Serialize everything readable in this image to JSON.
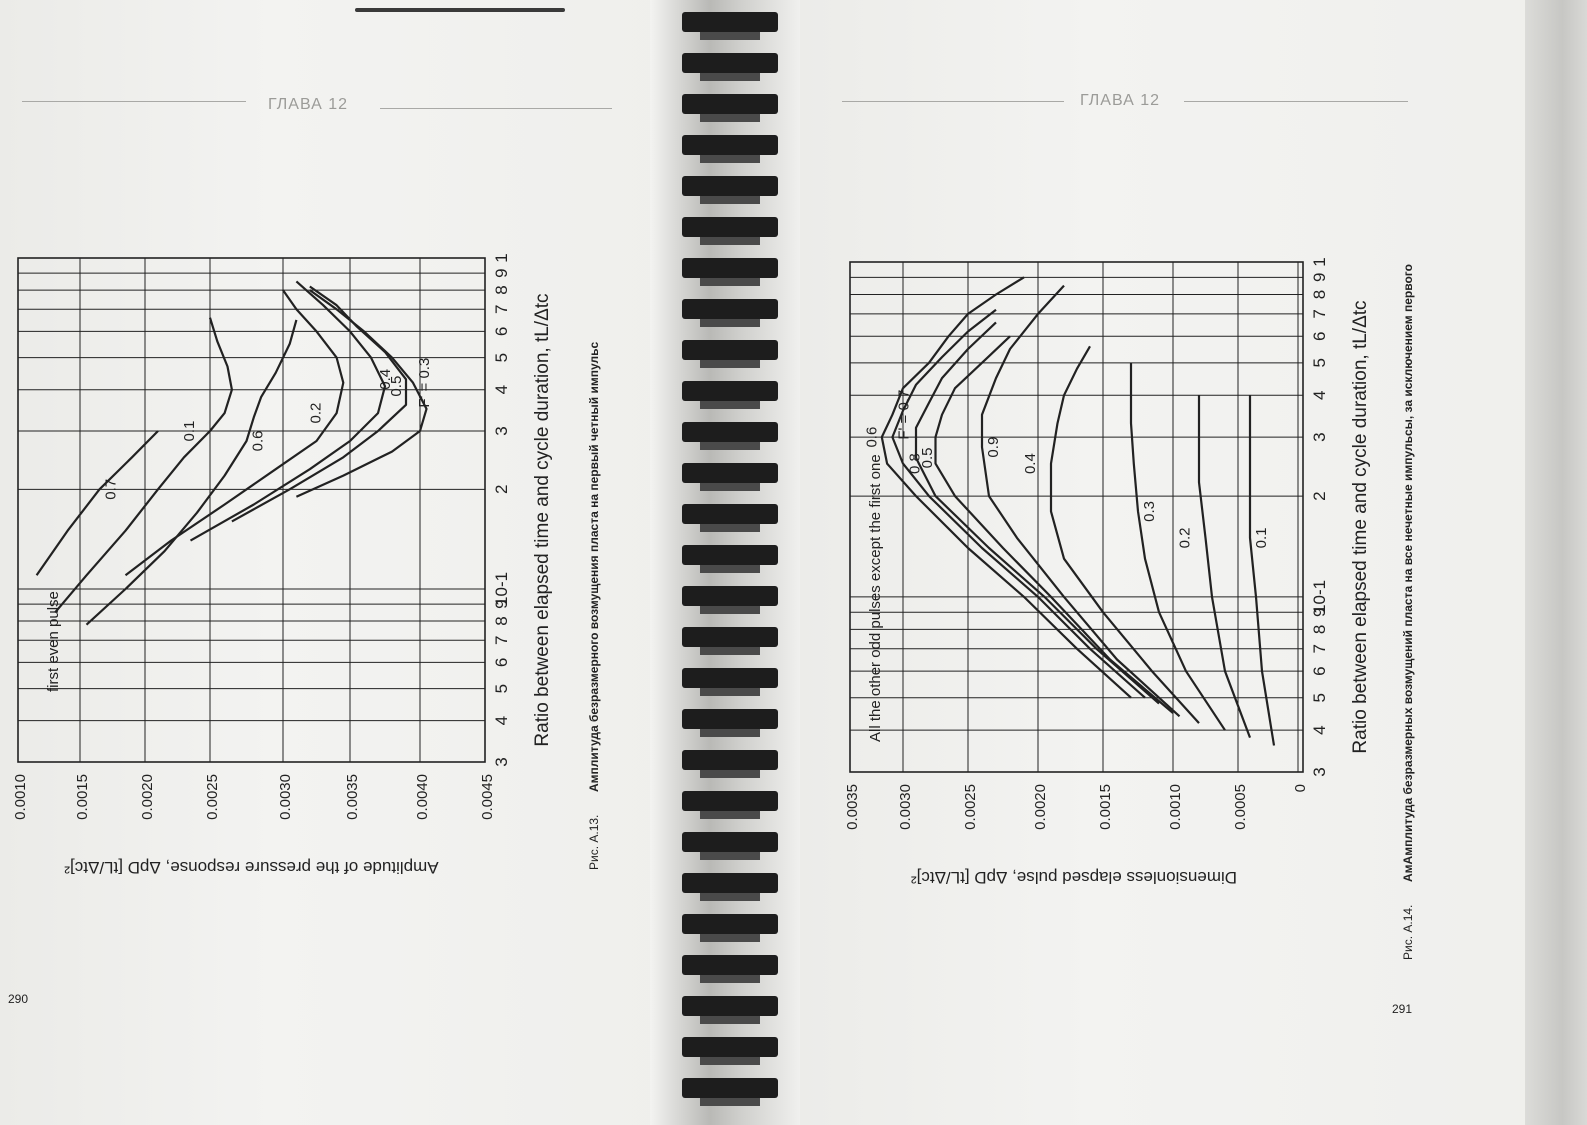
{
  "left_page": {
    "header": "ГЛАВА 12",
    "page_number": "290",
    "caption": {
      "prefix": "Рис. А.13.",
      "text": "Амплитуда безразмерного возмущения пласта на первый четный импульс"
    }
  },
  "right_page": {
    "header": "ГЛАВА 12",
    "page_number": "291",
    "caption": {
      "prefix": "Рис. А.14.",
      "text": "АмАмплитуда безразмерных возмущений пласта на все нечетные импульсы, за исключением первого"
    }
  },
  "colors": {
    "ink": "#222222",
    "paper": "#f1f1ef",
    "binding": "#1d1d1d"
  },
  "chart_data": [
    {
      "type": "line",
      "orientation": "rotated-90-ccw",
      "panel_label": "first even pulse",
      "xlabel": "Ratio between elapsed time and cycle duration, tL/Δtc",
      "ylabel": "Amplitude of the pressure response, ΔpD [tL/Δtc]²",
      "xscale": "log",
      "xlim": [
        0.03,
        1.0
      ],
      "ylim": [
        0.001,
        0.0045
      ],
      "x_tick_labels": [
        "3",
        "4",
        "5",
        "6",
        "7",
        "8",
        "9",
        "10-1",
        "2",
        "3",
        "4",
        "5",
        "6",
        "7",
        "8",
        "9",
        "1"
      ],
      "y_ticks": [
        0.001,
        0.0015,
        0.002,
        0.0025,
        0.003,
        0.0035,
        0.004,
        0.0045
      ],
      "y_tick_labels": [
        "0.0010",
        "0.0015",
        "0.0020",
        "0.0025",
        "0.0030",
        "0.0035",
        "0.0040",
        "0.0045"
      ],
      "grid": true,
      "series": [
        {
          "name": "F' = 0.3",
          "label": "F' = 0.3",
          "x": [
            0.19,
            0.22,
            0.26,
            0.3,
            0.35,
            0.42,
            0.5,
            0.6,
            0.7,
            0.8
          ],
          "y": [
            0.0031,
            0.00345,
            0.0038,
            0.004,
            0.00405,
            0.00395,
            0.0038,
            0.0036,
            0.0034,
            0.0032
          ]
        },
        {
          "name": "0.4",
          "label": "0.4",
          "x": [
            0.16,
            0.2,
            0.25,
            0.3,
            0.36,
            0.43,
            0.52,
            0.62,
            0.72,
            0.82
          ],
          "y": [
            0.00265,
            0.00305,
            0.00345,
            0.0037,
            0.0039,
            0.0039,
            0.00375,
            0.00355,
            0.0034,
            0.0032
          ]
        },
        {
          "name": "0.5",
          "label": "0.5",
          "x": [
            0.14,
            0.18,
            0.23,
            0.28,
            0.34,
            0.41,
            0.5,
            0.6,
            0.72,
            0.85
          ],
          "y": [
            0.00235,
            0.0028,
            0.0032,
            0.0035,
            0.0037,
            0.00375,
            0.00365,
            0.0035,
            0.0033,
            0.0031
          ]
        },
        {
          "name": "0.2",
          "label": "0.2",
          "x": [
            0.11,
            0.14,
            0.18,
            0.23,
            0.28,
            0.34,
            0.42,
            0.5,
            0.6,
            0.7,
            0.8
          ],
          "y": [
            0.00185,
            0.0022,
            0.0026,
            0.00295,
            0.00325,
            0.0034,
            0.00345,
            0.0034,
            0.00325,
            0.0031,
            0.003
          ]
        },
        {
          "name": "0.6",
          "label": "0.6",
          "x": [
            0.078,
            0.1,
            0.13,
            0.17,
            0.22,
            0.28,
            0.33,
            0.38,
            0.45,
            0.55,
            0.65
          ],
          "y": [
            0.00155,
            0.00185,
            0.00215,
            0.0024,
            0.0026,
            0.00275,
            0.0028,
            0.00285,
            0.00295,
            0.00305,
            0.0031
          ]
        },
        {
          "name": "0.1",
          "label": "0.1",
          "x": [
            0.085,
            0.11,
            0.15,
            0.2,
            0.25,
            0.3,
            0.34,
            0.4,
            0.47,
            0.56,
            0.66
          ],
          "y": [
            0.0013,
            0.00155,
            0.00185,
            0.0021,
            0.0023,
            0.0025,
            0.0026,
            0.00265,
            0.00262,
            0.00255,
            0.0025
          ]
        },
        {
          "name": "0.7",
          "label": "0.7",
          "x": [
            0.11,
            0.15,
            0.2,
            0.25,
            0.3
          ],
          "y": [
            0.00115,
            0.0014,
            0.00165,
            0.0019,
            0.0021
          ]
        }
      ]
    },
    {
      "type": "line",
      "orientation": "rotated-90-ccw",
      "panel_label": "All the other odd pulses except the first one",
      "xlabel": "Ratio between elapsed time and cycle duration, tL/Δtc",
      "ylabel": "Dimensionless elapsed pulse, ΔpD [tL/Δtc]²",
      "xscale": "log",
      "xlim": [
        0.03,
        1.0
      ],
      "ylim": [
        0,
        0.0035
      ],
      "x_tick_labels": [
        "3",
        "4",
        "5",
        "6",
        "7",
        "8",
        "9",
        "10-1",
        "2",
        "3",
        "4",
        "5",
        "6",
        "7",
        "8",
        "9",
        "1"
      ],
      "y_ticks": [
        0,
        0.0005,
        0.001,
        0.0015,
        0.002,
        0.0025,
        0.003,
        0.0035
      ],
      "y_tick_labels": [
        "0",
        "0.0005",
        "0.0010",
        "0.0015",
        "0.0020",
        "0.0025",
        "0.0030",
        "0.0035"
      ],
      "grid": true,
      "series": [
        {
          "name": "F' = 0.7",
          "label": "F' = 0.7",
          "x": [
            0.05,
            0.07,
            0.1,
            0.14,
            0.2,
            0.25,
            0.3,
            0.35,
            0.42,
            0.5,
            0.6,
            0.7,
            0.8,
            0.9
          ],
          "y": [
            0.0013,
            0.0017,
            0.0021,
            0.0025,
            0.0029,
            0.00315,
            0.0032,
            0.0031,
            0.003,
            0.0028,
            0.00265,
            0.0025,
            0.0023,
            0.0021
          ]
        },
        {
          "name": "0.6",
          "label": "0.6",
          "x": [
            0.05,
            0.07,
            0.1,
            0.14,
            0.2,
            0.25,
            0.3,
            0.36,
            0.43,
            0.52,
            0.62,
            0.72
          ],
          "y": [
            0.0012,
            0.0016,
            0.002,
            0.0024,
            0.0028,
            0.003,
            0.0031,
            0.003,
            0.0029,
            0.0027,
            0.0025,
            0.0023
          ]
        },
        {
          "name": "0.5",
          "label": "0.5",
          "x": [
            0.048,
            0.07,
            0.1,
            0.14,
            0.2,
            0.26,
            0.32,
            0.38,
            0.45,
            0.55,
            0.66
          ],
          "y": [
            0.0011,
            0.00155,
            0.00195,
            0.00235,
            0.00275,
            0.0029,
            0.0029,
            0.0028,
            0.0027,
            0.0025,
            0.0023
          ]
        },
        {
          "name": "0.8",
          "label": "0.8",
          "x": [
            0.045,
            0.065,
            0.1,
            0.14,
            0.2,
            0.25,
            0.3,
            0.35,
            0.42,
            0.5,
            0.6
          ],
          "y": [
            0.001,
            0.00145,
            0.0019,
            0.00225,
            0.0026,
            0.00275,
            0.00275,
            0.0027,
            0.0026,
            0.0024,
            0.0022
          ]
        },
        {
          "name": "0.9",
          "label": "0.9",
          "x": [
            0.044,
            0.065,
            0.1,
            0.15,
            0.2,
            0.28,
            0.35,
            0.45,
            0.55,
            0.7,
            0.85
          ],
          "y": [
            0.00095,
            0.0014,
            0.0018,
            0.00215,
            0.00235,
            0.0024,
            0.0024,
            0.0023,
            0.0022,
            0.002,
            0.0018
          ]
        },
        {
          "name": "0.4",
          "label": "0.4",
          "x": [
            0.042,
            0.06,
            0.09,
            0.13,
            0.18,
            0.25,
            0.33,
            0.4,
            0.48,
            0.56
          ],
          "y": [
            0.0008,
            0.00115,
            0.0015,
            0.0018,
            0.0019,
            0.0019,
            0.00185,
            0.0018,
            0.0017,
            0.0016
          ]
        },
        {
          "name": "0.3",
          "label": "0.3",
          "x": [
            0.04,
            0.06,
            0.09,
            0.13,
            0.18,
            0.25,
            0.33,
            0.42,
            0.5
          ],
          "y": [
            0.0006,
            0.0009,
            0.0011,
            0.0012,
            0.00125,
            0.00128,
            0.0013,
            0.0013,
            0.0013
          ]
        },
        {
          "name": "0.2",
          "label": "0.2",
          "x": [
            0.038,
            0.06,
            0.1,
            0.15,
            0.22,
            0.3,
            0.4
          ],
          "y": [
            0.0004,
            0.0006,
            0.0007,
            0.00075,
            0.0008,
            0.0008,
            0.0008
          ]
        },
        {
          "name": "0.1",
          "label": "0.1",
          "x": [
            0.036,
            0.06,
            0.1,
            0.15,
            0.22,
            0.3,
            0.4
          ],
          "y": [
            0.0002,
            0.0003,
            0.00035,
            0.0004,
            0.0004,
            0.0004,
            0.0004
          ]
        }
      ]
    }
  ]
}
